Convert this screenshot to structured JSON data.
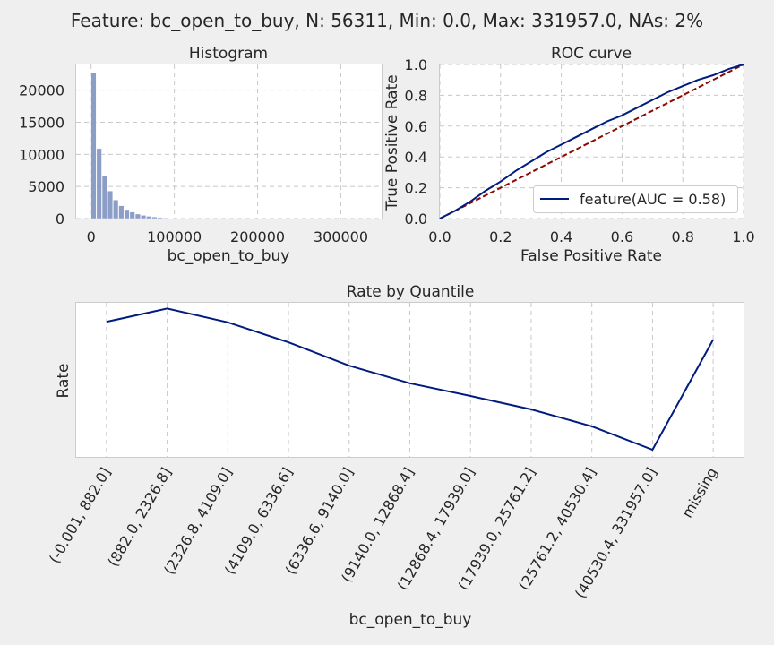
{
  "suptitle": "Feature: bc_open_to_buy, N: 56311, Min: 0.0, Max: 331957.0, NAs: 2%",
  "colors": {
    "hist_bar": "#8c9dc8",
    "line": "#001c7f",
    "diagonal": "#8c0800",
    "background": "#efefef"
  },
  "chart_data": [
    {
      "type": "bar",
      "title": "Histogram",
      "xlabel": "bc_open_to_buy",
      "ylabel": "",
      "xlim": [
        -18000,
        349000
      ],
      "ylim": [
        0,
        24000
      ],
      "xticks": [
        0,
        100000,
        200000,
        300000
      ],
      "xtick_labels": [
        "0",
        "100000",
        "200000",
        "300000"
      ],
      "yticks": [
        0,
        5000,
        10000,
        15000,
        20000
      ],
      "ytick_labels": [
        "0",
        "5000",
        "10000",
        "15000",
        "20000"
      ],
      "grid": true,
      "bin_width": 6640,
      "bin_starts": [
        0,
        6640,
        13280,
        19920,
        26560,
        33200,
        39840,
        46480,
        53120,
        59760,
        66400,
        73040,
        79680,
        86320,
        92960
      ],
      "values": [
        22700,
        10900,
        6600,
        4300,
        2900,
        2000,
        1400,
        1000,
        700,
        500,
        350,
        250,
        150,
        100,
        60
      ]
    },
    {
      "type": "line",
      "title": "ROC curve",
      "xlabel": "False Positive Rate",
      "ylabel": "True Positive Rate",
      "xlim": [
        0,
        1
      ],
      "ylim": [
        0,
        1
      ],
      "xticks": [
        0,
        0.2,
        0.4,
        0.6,
        0.8,
        1.0
      ],
      "xtick_labels": [
        "0.0",
        "0.2",
        "0.4",
        "0.6",
        "0.8",
        "1.0"
      ],
      "yticks": [
        0,
        0.2,
        0.4,
        0.6,
        0.8,
        1.0
      ],
      "ytick_labels": [
        "0.0",
        "0.2",
        "0.4",
        "0.6",
        "0.8",
        "1.0"
      ],
      "grid": true,
      "legend_position": "lower-right",
      "series": [
        {
          "name": "feature(AUC = 0.58)",
          "x": [
            0,
            0.05,
            0.1,
            0.15,
            0.2,
            0.25,
            0.3,
            0.35,
            0.4,
            0.45,
            0.5,
            0.55,
            0.6,
            0.65,
            0.7,
            0.75,
            0.8,
            0.85,
            0.9,
            0.95,
            1.0
          ],
          "y": [
            0,
            0.05,
            0.11,
            0.18,
            0.24,
            0.31,
            0.37,
            0.43,
            0.48,
            0.53,
            0.58,
            0.63,
            0.67,
            0.72,
            0.77,
            0.82,
            0.86,
            0.9,
            0.93,
            0.97,
            1.0
          ]
        }
      ],
      "diagonal": {
        "x": [
          0,
          1
        ],
        "y": [
          0,
          1
        ]
      }
    },
    {
      "type": "line",
      "title": "Rate by Quantile",
      "xlabel": "bc_open_to_buy",
      "ylabel": "Rate",
      "categories": [
        "(-0.001, 882.0]",
        "(882.0, 2326.8]",
        "(2326.8, 4109.0]",
        "(4109.0, 6336.6]",
        "(6336.6, 9140.0]",
        "(9140.0, 12868.4]",
        "(12868.4, 17939.0]",
        "(17939.0, 25761.2]",
        "(25761.2, 40530.4]",
        "(40530.4, 331957.0]",
        "missing"
      ],
      "values": [
        0.897,
        0.99,
        0.893,
        0.753,
        0.589,
        0.466,
        0.377,
        0.283,
        0.164,
        0.0,
        0.772
      ],
      "ylim": [
        -0.05,
        1.03
      ],
      "grid": true,
      "yticks_shown": false
    }
  ]
}
